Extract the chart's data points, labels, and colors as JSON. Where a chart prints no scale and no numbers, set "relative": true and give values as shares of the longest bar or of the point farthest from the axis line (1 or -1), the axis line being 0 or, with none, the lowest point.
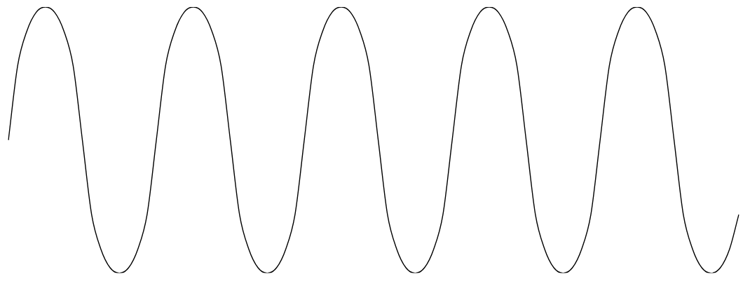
{
  "chart_data": {
    "type": "line",
    "relative": true,
    "grid": false,
    "legend": false,
    "categories": [
      null,
      null,
      null,
      null,
      null,
      null,
      null,
      null,
      null,
      null,
      null,
      null,
      null,
      null,
      null,
      null,
      null,
      null,
      null,
      null,
      null,
      null,
      null,
      null,
      null,
      null,
      null,
      null,
      null,
      null,
      null,
      null,
      null,
      null,
      null,
      null,
      null,
      null,
      null,
      null,
      null,
      null,
      null,
      null,
      null,
      null,
      null,
      null,
      null,
      null,
      null,
      null,
      null,
      null,
      null,
      null,
      null,
      null,
      null,
      null,
      null,
      null,
      null,
      null,
      null,
      null,
      null,
      null,
      null,
      null,
      null,
      null,
      null,
      null,
      null,
      null,
      null,
      null,
      null,
      null
    ],
    "series": [
      {
        "color": "#000000",
        "values": [
          0.5,
          0.78,
          0.91,
          0.98,
          1,
          0.98,
          0.91,
          0.78,
          0.5,
          0.22,
          0.09,
          0.02,
          0,
          0.02,
          0.09,
          0.22,
          0.5,
          0.78,
          0.91,
          0.98,
          1,
          0.98,
          0.91,
          0.78,
          0.5,
          0.22,
          0.09,
          0.02,
          0,
          0.02,
          0.09,
          0.22,
          0.5,
          0.78,
          0.91,
          0.98,
          1,
          0.98,
          0.91,
          0.78,
          0.5,
          0.22,
          0.09,
          0.02,
          0,
          0.02,
          0.09,
          0.22,
          0.5,
          0.78,
          0.91,
          0.98,
          1,
          0.98,
          0.91,
          0.78,
          0.5,
          0.22,
          0.09,
          0.02,
          0,
          0.02,
          0.09,
          0.22,
          0.5,
          0.78,
          0.91,
          0.98,
          1,
          0.98,
          0.91,
          0.78,
          0.5,
          0.22,
          0.09,
          0.02,
          0,
          0.02,
          0.09,
          0.22
        ]
      }
    ]
  }
}
